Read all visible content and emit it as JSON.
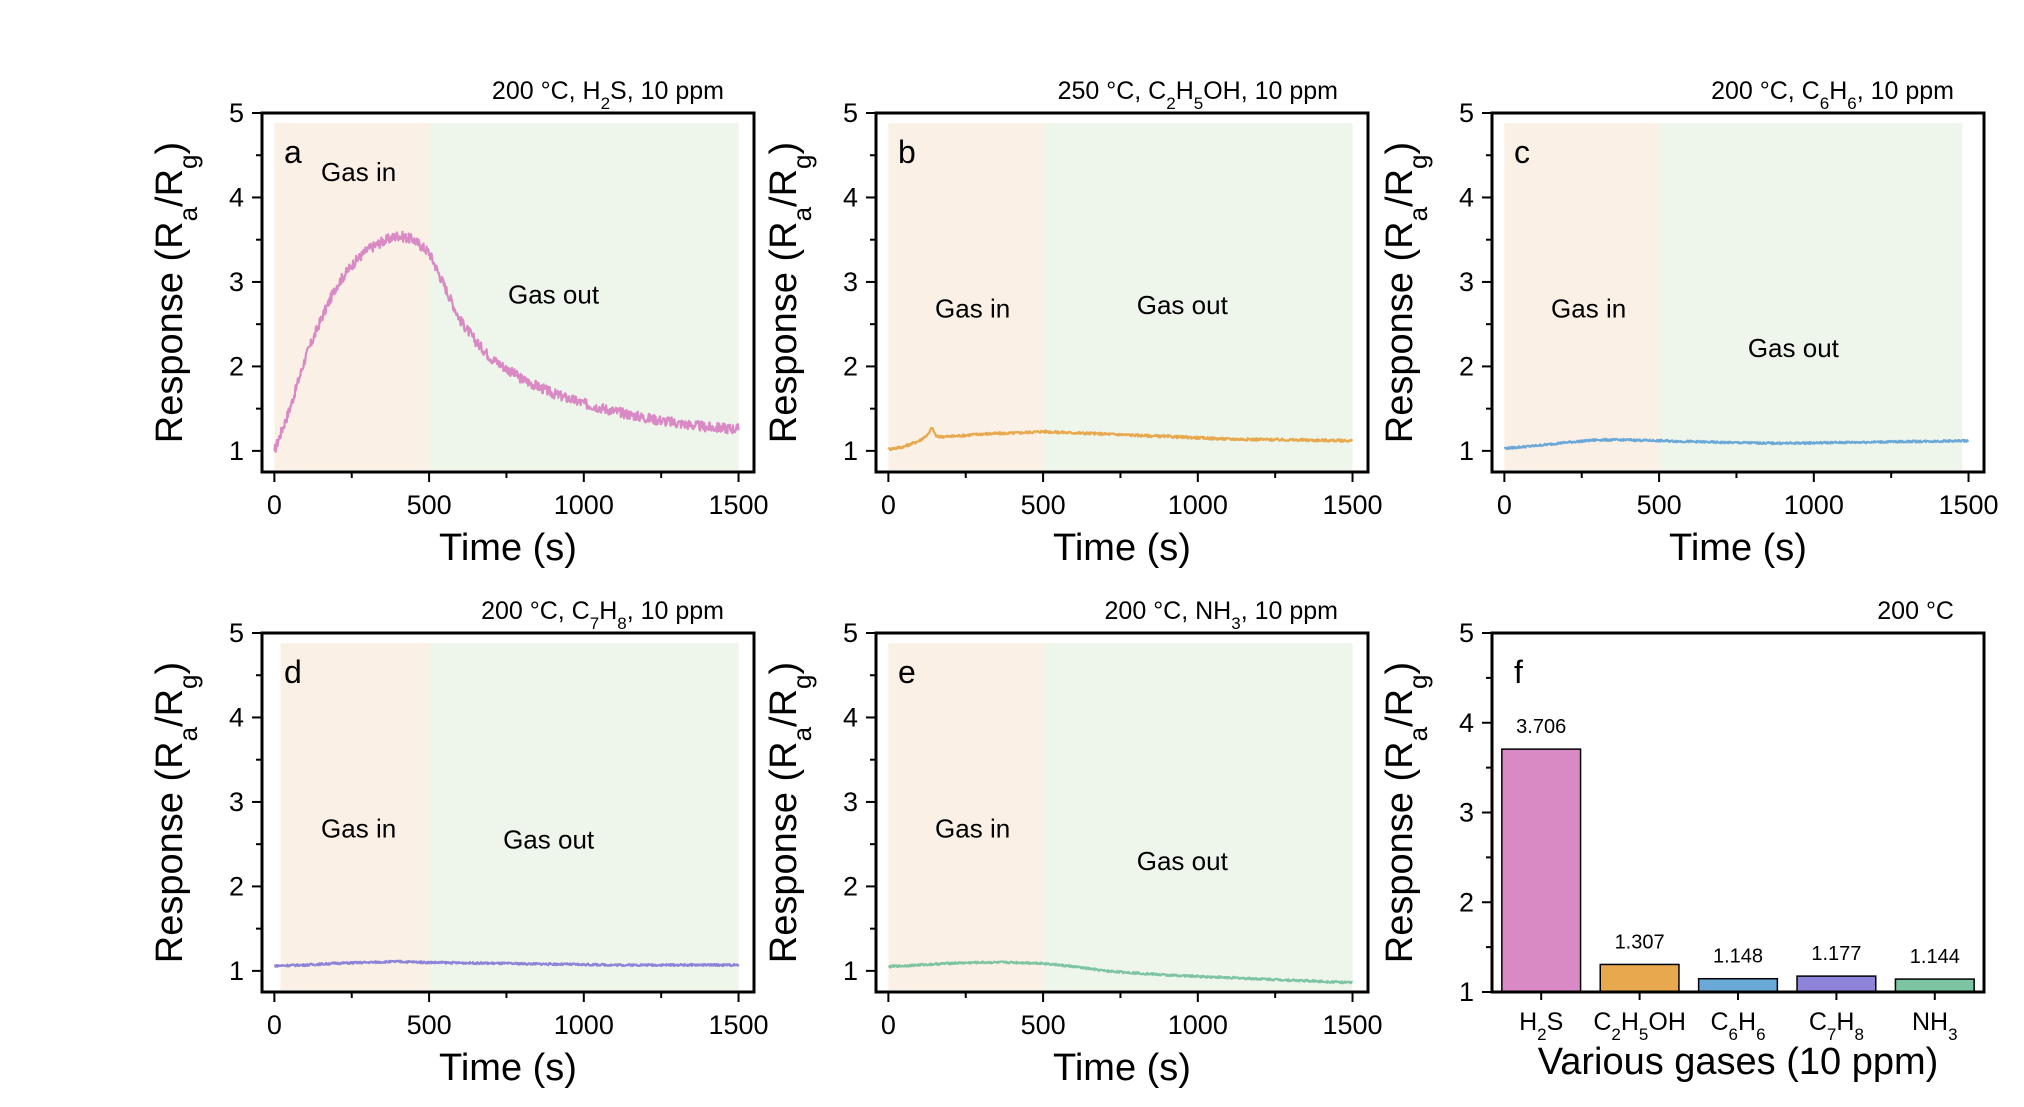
{
  "chart_data": [
    {
      "type": "line",
      "panel": "a",
      "title_parts": [
        {
          "t": "200 °C, H"
        },
        {
          "t": "2",
          "sub": true
        },
        {
          "t": "S,  10 ppm"
        }
      ],
      "gas_in_label": "Gas in",
      "gas_out_label": "Gas out",
      "xlabel": "Time (s)",
      "ylabel_parts": [
        {
          "t": "Response (R"
        },
        {
          "t": "a",
          "sub": true
        },
        {
          "t": "/R"
        },
        {
          "t": "g",
          "sub": true
        },
        {
          "t": ")"
        }
      ],
      "xlim": [
        -40,
        1550
      ],
      "ylim": [
        0.75,
        5
      ],
      "xticks": [
        0,
        500,
        1000,
        1500
      ],
      "xtick_labels": [
        "0",
        "500",
        "1000",
        "1500"
      ],
      "yticks": [
        1,
        2,
        3,
        4,
        5
      ],
      "ytick_labels": [
        "1",
        "2",
        "3",
        "4",
        "5"
      ],
      "gas_in_range": [
        0,
        500
      ],
      "gas_out_range": [
        500,
        1500
      ],
      "color": "#d98ac4",
      "noise": 0.06,
      "series": [
        {
          "name": "H2S",
          "x": [
            0,
            50,
            100,
            150,
            200,
            250,
            300,
            350,
            400,
            450,
            500,
            550,
            600,
            650,
            700,
            800,
            900,
            1000,
            1100,
            1200,
            1300,
            1400,
            1500
          ],
          "y": [
            1.0,
            1.5,
            2.1,
            2.55,
            2.95,
            3.2,
            3.38,
            3.48,
            3.55,
            3.5,
            3.35,
            2.95,
            2.55,
            2.3,
            2.1,
            1.85,
            1.68,
            1.56,
            1.47,
            1.39,
            1.33,
            1.28,
            1.26
          ]
        }
      ],
      "text_labels": {
        "panel_letter": "a"
      }
    },
    {
      "type": "line",
      "panel": "b",
      "title_parts": [
        {
          "t": "250 °C, C"
        },
        {
          "t": "2",
          "sub": true
        },
        {
          "t": "H"
        },
        {
          "t": "5",
          "sub": true
        },
        {
          "t": "OH,  10 ppm"
        }
      ],
      "gas_in_label": "Gas in",
      "gas_out_label": "Gas out",
      "xlabel": "Time (s)",
      "ylabel_parts": [
        {
          "t": "Response (R"
        },
        {
          "t": "a",
          "sub": true
        },
        {
          "t": "/R"
        },
        {
          "t": "g",
          "sub": true
        },
        {
          "t": ")"
        }
      ],
      "xlim": [
        -40,
        1550
      ],
      "ylim": [
        0.75,
        5
      ],
      "xticks": [
        0,
        500,
        1000,
        1500
      ],
      "xtick_labels": [
        "0",
        "500",
        "1000",
        "1500"
      ],
      "yticks": [
        1,
        2,
        3,
        4,
        5
      ],
      "ytick_labels": [
        "1",
        "2",
        "3",
        "4",
        "5"
      ],
      "gas_in_range": [
        0,
        500
      ],
      "gas_out_range": [
        500,
        1500
      ],
      "color": "#e8a94e",
      "noise": 0.015,
      "series": [
        {
          "name": "C2H5OH",
          "x": [
            0,
            50,
            100,
            130,
            140,
            155,
            200,
            300,
            400,
            500,
            550,
            700,
            900,
            1100,
            1300,
            1500
          ],
          "y": [
            1.02,
            1.05,
            1.12,
            1.2,
            1.28,
            1.17,
            1.17,
            1.2,
            1.21,
            1.23,
            1.22,
            1.2,
            1.17,
            1.14,
            1.13,
            1.12
          ]
        }
      ],
      "text_labels": {
        "panel_letter": "b"
      }
    },
    {
      "type": "line",
      "panel": "c",
      "title_parts": [
        {
          "t": "200 °C, C"
        },
        {
          "t": "6",
          "sub": true
        },
        {
          "t": "H"
        },
        {
          "t": "6",
          "sub": true
        },
        {
          "t": ",  10 ppm"
        }
      ],
      "gas_in_label": "Gas in",
      "gas_out_label": "Gas out",
      "xlabel": "Time (s)",
      "ylabel_parts": [
        {
          "t": "Response (R"
        },
        {
          "t": "a",
          "sub": true
        },
        {
          "t": "/R"
        },
        {
          "t": "g",
          "sub": true
        },
        {
          "t": ")"
        }
      ],
      "xlim": [
        -40,
        1550
      ],
      "ylim": [
        0.75,
        5
      ],
      "xticks": [
        0,
        500,
        1000,
        1500
      ],
      "xtick_labels": [
        "0",
        "500",
        "1000",
        "1500"
      ],
      "yticks": [
        1,
        2,
        3,
        4,
        5
      ],
      "ytick_labels": [
        "1",
        "2",
        "3",
        "4",
        "5"
      ],
      "gas_in_range": [
        0,
        500
      ],
      "gas_out_range": [
        500,
        1480
      ],
      "color": "#6aa8d8",
      "noise": 0.012,
      "series": [
        {
          "name": "C6H6",
          "x": [
            0,
            100,
            200,
            300,
            400,
            500,
            700,
            900,
            1100,
            1300,
            1500
          ],
          "y": [
            1.03,
            1.06,
            1.1,
            1.13,
            1.13,
            1.12,
            1.1,
            1.09,
            1.1,
            1.11,
            1.12
          ]
        }
      ],
      "text_labels": {
        "panel_letter": "c"
      }
    },
    {
      "type": "line",
      "panel": "d",
      "title_parts": [
        {
          "t": "200 °C, C"
        },
        {
          "t": "7",
          "sub": true
        },
        {
          "t": "H"
        },
        {
          "t": "8",
          "sub": true
        },
        {
          "t": ",  10 ppm"
        }
      ],
      "gas_in_label": "Gas in",
      "gas_out_label": "Gas out",
      "xlabel": "Time (s)",
      "ylabel_parts": [
        {
          "t": "Response (R"
        },
        {
          "t": "a",
          "sub": true
        },
        {
          "t": "/R"
        },
        {
          "t": "g",
          "sub": true
        },
        {
          "t": ")"
        }
      ],
      "xlim": [
        -40,
        1550
      ],
      "ylim": [
        0.75,
        5
      ],
      "xticks": [
        0,
        500,
        1000,
        1500
      ],
      "xtick_labels": [
        "0",
        "500",
        "1000",
        "1500"
      ],
      "yticks": [
        1,
        2,
        3,
        4,
        5
      ],
      "ytick_labels": [
        "1",
        "2",
        "3",
        "4",
        "5"
      ],
      "gas_in_range": [
        20,
        500
      ],
      "gas_out_range": [
        500,
        1500
      ],
      "color": "#8d83d8",
      "noise": 0.012,
      "series": [
        {
          "name": "C7H8",
          "x": [
            0,
            100,
            200,
            300,
            400,
            500,
            700,
            900,
            1100,
            1300,
            1500
          ],
          "y": [
            1.06,
            1.07,
            1.09,
            1.1,
            1.11,
            1.1,
            1.09,
            1.08,
            1.07,
            1.07,
            1.07
          ]
        }
      ],
      "text_labels": {
        "panel_letter": "d"
      }
    },
    {
      "type": "line",
      "panel": "e",
      "title_parts": [
        {
          "t": "200 °C, NH"
        },
        {
          "t": "3",
          "sub": true
        },
        {
          "t": ",  10 ppm"
        }
      ],
      "gas_in_label": "Gas in",
      "gas_out_label": "Gas out",
      "xlabel": "Time (s)",
      "ylabel_parts": [
        {
          "t": "Response (R"
        },
        {
          "t": "a",
          "sub": true
        },
        {
          "t": "/R"
        },
        {
          "t": "g",
          "sub": true
        },
        {
          "t": ")"
        }
      ],
      "xlim": [
        -40,
        1550
      ],
      "ylim": [
        0.75,
        5
      ],
      "xticks": [
        0,
        500,
        1000,
        1500
      ],
      "xtick_labels": [
        "0",
        "500",
        "1000",
        "1500"
      ],
      "yticks": [
        1,
        2,
        3,
        4,
        5
      ],
      "ytick_labels": [
        "1",
        "2",
        "3",
        "4",
        "5"
      ],
      "gas_in_range": [
        0,
        500
      ],
      "gas_out_range": [
        500,
        1500
      ],
      "color": "#7cc4a2",
      "noise": 0.012,
      "series": [
        {
          "name": "NH3",
          "x": [
            0,
            100,
            200,
            300,
            400,
            500,
            600,
            700,
            900,
            1100,
            1300,
            1500
          ],
          "y": [
            1.05,
            1.07,
            1.09,
            1.1,
            1.1,
            1.09,
            1.05,
            1.0,
            0.95,
            0.92,
            0.89,
            0.86
          ]
        }
      ],
      "text_labels": {
        "panel_letter": "e"
      }
    },
    {
      "type": "bar",
      "panel": "f",
      "title_parts": [
        {
          "t": "200 °C"
        }
      ],
      "xlabel": "Various gases (10 ppm)",
      "ylabel_parts": [
        {
          "t": "Response (R"
        },
        {
          "t": "a",
          "sub": true
        },
        {
          "t": "/R"
        },
        {
          "t": "g",
          "sub": true
        },
        {
          "t": ")"
        }
      ],
      "ylim": [
        1,
        5
      ],
      "yticks": [
        1,
        2,
        3,
        4,
        5
      ],
      "ytick_labels": [
        "1",
        "2",
        "3",
        "4",
        "5"
      ],
      "categories": [
        [
          {
            "t": "H"
          },
          {
            "t": "2",
            "sub": true
          },
          {
            "t": "S"
          }
        ],
        [
          {
            "t": "C"
          },
          {
            "t": "2",
            "sub": true
          },
          {
            "t": "H"
          },
          {
            "t": "5",
            "sub": true
          },
          {
            "t": "OH"
          }
        ],
        [
          {
            "t": "C"
          },
          {
            "t": "6",
            "sub": true
          },
          {
            "t": "H"
          },
          {
            "t": "6",
            "sub": true
          }
        ],
        [
          {
            "t": "C"
          },
          {
            "t": "7",
            "sub": true
          },
          {
            "t": "H"
          },
          {
            "t": "8",
            "sub": true
          }
        ],
        [
          {
            "t": "NH"
          },
          {
            "t": "3",
            "sub": true
          }
        ]
      ],
      "values": [
        3.706,
        1.307,
        1.148,
        1.177,
        1.144
      ],
      "value_labels": [
        "3.706",
        "1.307",
        "1.148",
        "1.177",
        "1.144"
      ],
      "colors": [
        "#d98ac4",
        "#e8a94e",
        "#6aa8d8",
        "#8d83d8",
        "#7cc4a2"
      ],
      "text_labels": {
        "panel_letter": "f"
      }
    }
  ]
}
